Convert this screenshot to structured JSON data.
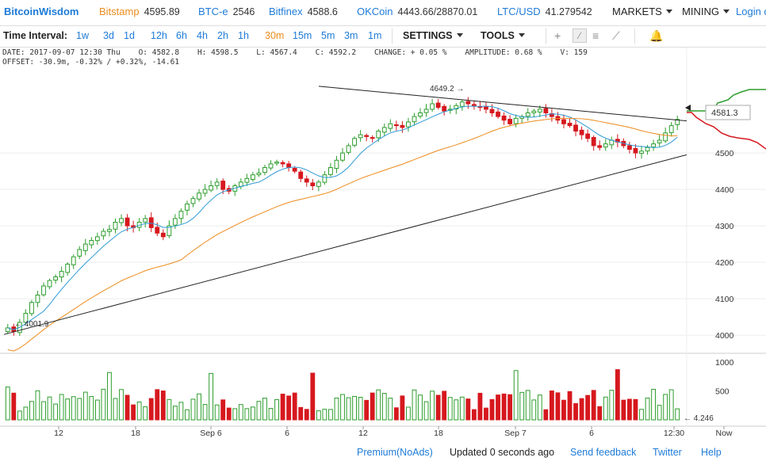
{
  "brand": "BitcoinWisdom",
  "exchanges": [
    {
      "name": "Bitstamp",
      "price": "4595.89",
      "active": true
    },
    {
      "name": "BTC-e",
      "price": "2546",
      "active": false
    },
    {
      "name": "Bitfinex",
      "price": "4588.6",
      "active": false
    },
    {
      "name": "OKCoin",
      "price": "4443.66/28870.01",
      "active": false
    },
    {
      "name": "LTC/USD",
      "price": "41.279542",
      "active": false
    }
  ],
  "nav": {
    "markets": "MARKETS",
    "mining": "MINING",
    "login": "Login or"
  },
  "toolbar": {
    "time_interval_label": "Time Interval:",
    "intervals_left": [
      "1w",
      "3d",
      "1d",
      "12h",
      "6h",
      "4h",
      "2h",
      "1h"
    ],
    "active_interval": "30m",
    "intervals_right": [
      "15m",
      "5m",
      "3m",
      "1m"
    ],
    "settings": "SETTINGS",
    "tools": "TOOLS"
  },
  "info": {
    "line1": "DATE: 2017-09-07 12:30 Thu    O: 4582.8    H: 4598.5    L: 4567.4    C: 4592.2    CHANGE: + 0.05 %    AMPLITUDE: 0.68 %    V: 159",
    "line2": "OFFSET: -30.9m, -0.32% / +0.32%, -14.61"
  },
  "chart_data": {
    "type": "candlestick",
    "price_axis_ticks": [
      4000,
      4100,
      4200,
      4300,
      4400,
      4500
    ],
    "price_axis_range": [
      3985,
      4685
    ],
    "volume_axis_ticks": [
      500,
      1000
    ],
    "time_labels": [
      "12",
      "18",
      "Sep 6",
      "6",
      "12",
      "18",
      "Sep 7",
      "6",
      "12:30",
      "Now"
    ],
    "annotations": {
      "high_label": "4649.2",
      "low_label": "4001.9",
      "current_price": "4581.3",
      "current_volume": "4.246"
    },
    "colors": {
      "up": "#2e9e2e",
      "down": "#d6181e",
      "ma_fast": "#2f9bd6",
      "ma_slow": "#ec8b1c",
      "depth_bid": "#2e9e2e",
      "depth_ask": "#d6181e"
    },
    "close_series": [
      4020,
      4010,
      4035,
      4060,
      4090,
      4110,
      4135,
      4150,
      4160,
      4175,
      4195,
      4215,
      4235,
      4250,
      4260,
      4270,
      4285,
      4290,
      4310,
      4320,
      4300,
      4295,
      4310,
      4320,
      4295,
      4280,
      4270,
      4300,
      4320,
      4340,
      4360,
      4375,
      4390,
      4400,
      4410,
      4420,
      4400,
      4395,
      4410,
      4420,
      4430,
      4440,
      4445,
      4460,
      4470,
      4475,
      4470,
      4460,
      4450,
      4430,
      4420,
      4410,
      4420,
      4440,
      4460,
      4480,
      4500,
      4520,
      4540,
      4550,
      4545,
      4540,
      4560,
      4570,
      4580,
      4575,
      4570,
      4585,
      4600,
      4610,
      4620,
      4635,
      4625,
      4615,
      4620,
      4630,
      4640,
      4635,
      4630,
      4625,
      4620,
      4610,
      4600,
      4590,
      4580,
      4595,
      4600,
      4610,
      4615,
      4620,
      4610,
      4600,
      4590,
      4580,
      4575,
      4560,
      4550,
      4540,
      4520,
      4515,
      4525,
      4535,
      4530,
      4520,
      4510,
      4500,
      4505,
      4515,
      4525,
      4535,
      4555,
      4575,
      4592
    ]
  },
  "footer": {
    "premium": "Premium(NoAds)",
    "updated": "Updated 0 seconds ago",
    "feedback": "Send feedback",
    "twitter": "Twitter",
    "help": "Help"
  }
}
